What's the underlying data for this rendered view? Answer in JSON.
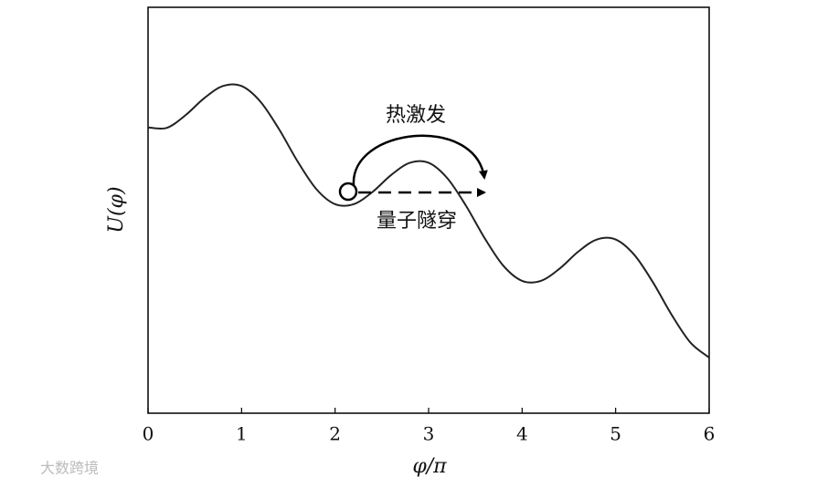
{
  "chart_data": {
    "type": "line",
    "x_label": "φ/π",
    "y_label": "U(φ)",
    "annotations": [
      "热激发",
      "量子隧穿"
    ],
    "x": [
      0,
      0.2,
      0.4,
      0.6,
      0.8,
      1.0,
      1.2,
      1.4,
      1.6,
      1.8,
      2.0,
      2.2,
      2.4,
      2.6,
      2.8,
      3.0,
      3.2,
      3.4,
      3.6,
      3.8,
      4.0,
      4.2,
      4.4,
      4.6,
      4.8,
      5.0,
      5.2,
      5.4,
      5.6,
      5.8,
      6.0
    ],
    "values": [
      7.04,
      7.03,
      7.34,
      7.76,
      8.06,
      8.06,
      7.68,
      7.0,
      6.2,
      5.52,
      5.15,
      5.15,
      5.45,
      5.87,
      6.17,
      6.17,
      5.79,
      5.11,
      4.31,
      3.63,
      3.26,
      3.26,
      3.56,
      3.98,
      4.28,
      4.28,
      3.9,
      3.22,
      2.42,
      1.74,
      1.37
    ],
    "color": "#222222",
    "xlim": [
      0,
      6
    ],
    "xticks": [
      0,
      1,
      2,
      3,
      4,
      5,
      6
    ],
    "ylim": [
      0,
      10
    ]
  },
  "watermark": "大数跨境"
}
